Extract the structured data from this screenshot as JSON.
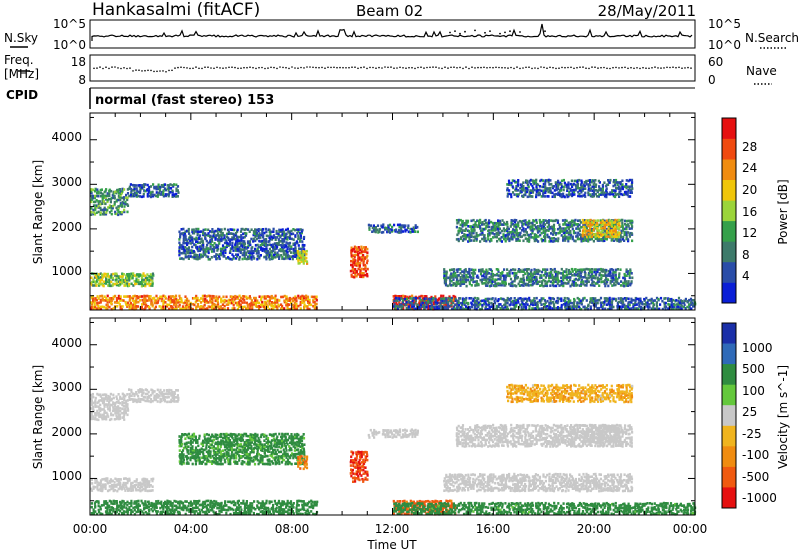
{
  "header": {
    "station": "Hankasalmi (fitACF)",
    "beam": "Beam 02",
    "date": "28/May/2011"
  },
  "noise_panel": {
    "left_label": "N.Sky",
    "right_label": "N.Search",
    "left_ticks": [
      "10^5",
      "10^0"
    ],
    "right_ticks": [
      "10^5",
      "10^0"
    ]
  },
  "freq_panel": {
    "left_label": "Freq.",
    "left_unit": "[MHz]",
    "left_ticks": [
      "18",
      "8"
    ],
    "right_label": "Nave",
    "right_ticks": [
      "60",
      "0"
    ]
  },
  "cpid_panel": {
    "label": "CPID",
    "program": "normal (fast stereo) 153"
  },
  "colors": {
    "power": [
      "#0a1fd6",
      "#2a4da8",
      "#3d7a6a",
      "#35a04a",
      "#9bd43a",
      "#f0c60a",
      "#f08c10",
      "#f04a10",
      "#e61010"
    ],
    "velocity": [
      "#1a2fa8",
      "#2f6ab8",
      "#2f8c40",
      "#64c83c",
      "#c8c8c8",
      "#f0b41e",
      "#f08c10",
      "#f05a10",
      "#e61010"
    ]
  },
  "chart_data": [
    {
      "type": "heatmap",
      "title": "",
      "xlabel": "Time UT",
      "ylabel": "Slant Range [km]",
      "x_ticks": [
        "00:00",
        "04:00",
        "08:00",
        "12:00",
        "16:00",
        "20:00",
        "00:00"
      ],
      "xlim": [
        0,
        24
      ],
      "y_ticks": [
        "1000",
        "2000",
        "3000",
        "4000"
      ],
      "ylim": [
        180,
        4600
      ],
      "colorbar": {
        "label": "Power [dB]",
        "ticks": [
          "4",
          "8",
          "12",
          "16",
          "20",
          "24",
          "28"
        ],
        "range": [
          0,
          30
        ]
      },
      "echo_regions": [
        {
          "x": [
            0,
            9
          ],
          "y": [
            180,
            500
          ],
          "value": 22
        },
        {
          "x": [
            0,
            2.5
          ],
          "y": [
            700,
            1000
          ],
          "value": 14
        },
        {
          "x": [
            0,
            1.5
          ],
          "y": [
            2300,
            2900
          ],
          "value": 10
        },
        {
          "x": [
            1.5,
            3.5
          ],
          "y": [
            2700,
            3000
          ],
          "value": 6
        },
        {
          "x": [
            3.5,
            8.5
          ],
          "y": [
            1300,
            2000
          ],
          "value": 6
        },
        {
          "x": [
            8.2,
            8.6
          ],
          "y": [
            1200,
            1500
          ],
          "value": 16
        },
        {
          "x": [
            10.3,
            11.0
          ],
          "y": [
            900,
            1600
          ],
          "value": 26
        },
        {
          "x": [
            11.0,
            13.0
          ],
          "y": [
            1900,
            2100
          ],
          "value": 6
        },
        {
          "x": [
            12,
            14.5
          ],
          "y": [
            180,
            500
          ],
          "value": 28
        },
        {
          "x": [
            14,
            21.5
          ],
          "y": [
            700,
            1100
          ],
          "value": 8
        },
        {
          "x": [
            14.5,
            21.5
          ],
          "y": [
            1700,
            2200
          ],
          "value": 8
        },
        {
          "x": [
            16.5,
            21.5
          ],
          "y": [
            2700,
            3100
          ],
          "value": 6
        },
        {
          "x": [
            19.5,
            21.0
          ],
          "y": [
            1800,
            2200
          ],
          "value": 18
        },
        {
          "x": [
            12,
            24
          ],
          "y": [
            180,
            450
          ],
          "value": 6
        }
      ]
    },
    {
      "type": "heatmap",
      "title": "",
      "xlabel": "Time UT",
      "ylabel": "Slant Range [km]",
      "x_ticks": [
        "00:00",
        "04:00",
        "08:00",
        "12:00",
        "16:00",
        "20:00",
        "00:00"
      ],
      "xlim": [
        0,
        24
      ],
      "y_ticks": [
        "1000",
        "2000",
        "3000",
        "4000"
      ],
      "ylim": [
        180,
        4600
      ],
      "colorbar": {
        "label": "Velocity [m s^-1]",
        "ticks": [
          "1000",
          "500",
          "100",
          "25",
          "-25",
          "-100",
          "-500",
          "-1000"
        ],
        "range": [
          -1000,
          1000
        ]
      },
      "echo_regions": [
        {
          "x": [
            0,
            9
          ],
          "y": [
            180,
            500
          ],
          "value": 150
        },
        {
          "x": [
            0,
            2.5
          ],
          "y": [
            700,
            1000
          ],
          "value": 0
        },
        {
          "x": [
            0,
            1.5
          ],
          "y": [
            2300,
            2900
          ],
          "value": 0
        },
        {
          "x": [
            1.5,
            3.5
          ],
          "y": [
            2700,
            3000
          ],
          "value": 0
        },
        {
          "x": [
            3.5,
            8.5
          ],
          "y": [
            1300,
            2000
          ],
          "value": 80
        },
        {
          "x": [
            8.2,
            8.6
          ],
          "y": [
            1200,
            1500
          ],
          "value": -300
        },
        {
          "x": [
            10.3,
            11.0
          ],
          "y": [
            900,
            1600
          ],
          "value": -700
        },
        {
          "x": [
            11.0,
            13.0
          ],
          "y": [
            1900,
            2100
          ],
          "value": 0
        },
        {
          "x": [
            12,
            14.5
          ],
          "y": [
            180,
            500
          ],
          "value": -400
        },
        {
          "x": [
            14,
            21.5
          ],
          "y": [
            700,
            1100
          ],
          "value": 0
        },
        {
          "x": [
            14.5,
            21.5
          ],
          "y": [
            1700,
            2200
          ],
          "value": 0
        },
        {
          "x": [
            16.5,
            21.5
          ],
          "y": [
            2700,
            3100
          ],
          "value": -50
        },
        {
          "x": [
            19.5,
            21.0
          ],
          "y": [
            1800,
            2200
          ],
          "value": 0
        },
        {
          "x": [
            12,
            24
          ],
          "y": [
            180,
            450
          ],
          "value": 100
        }
      ]
    }
  ]
}
